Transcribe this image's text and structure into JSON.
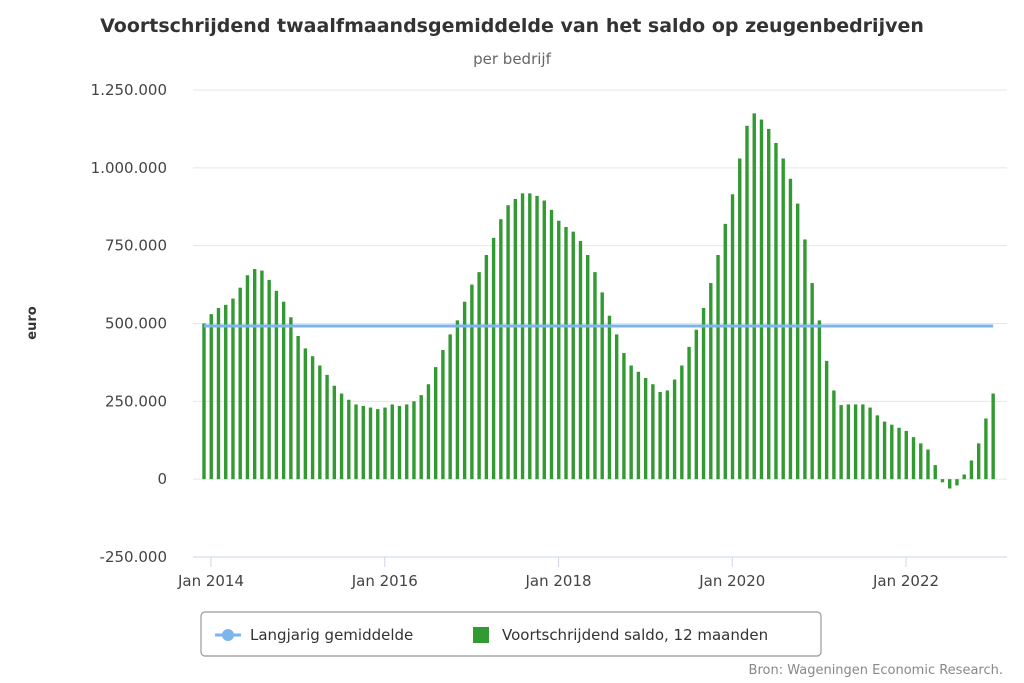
{
  "chart_data": {
    "type": "bar",
    "title": "Voortschrijdend twaalfmaandsgemiddelde van het saldo op zeugenbedrijven",
    "subtitle": "per bedrijf",
    "ylabel": "euro",
    "xlabel": "",
    "ylim": [
      -250000,
      1250000
    ],
    "yticks": [
      -250000,
      0,
      250000,
      500000,
      750000,
      1000000,
      1250000
    ],
    "ytick_labels": [
      "-250.000",
      "0",
      "250.000",
      "500.000",
      "750.000",
      "1.000.000",
      "1.250.000"
    ],
    "xticks": [
      {
        "label": "Jan 2014",
        "month_index": 0
      },
      {
        "label": "Jan 2016",
        "month_index": 24
      },
      {
        "label": "Jan 2018",
        "month_index": 48
      },
      {
        "label": "Jan 2020",
        "month_index": 72
      },
      {
        "label": "Jan 2022",
        "month_index": 96
      }
    ],
    "start": "Jan 2014",
    "series": [
      {
        "name": "Langjarig gemiddelde",
        "type": "line",
        "color": "#7cb5ec",
        "value": 492000
      },
      {
        "name": "Voortschrijdend saldo, 12 maanden",
        "type": "bar",
        "color": "#339933",
        "values": [
          500000,
          530000,
          550000,
          560000,
          580000,
          615000,
          655000,
          675000,
          670000,
          640000,
          605000,
          570000,
          520000,
          460000,
          420000,
          395000,
          365000,
          335000,
          300000,
          275000,
          255000,
          240000,
          235000,
          230000,
          225000,
          230000,
          240000,
          235000,
          240000,
          250000,
          270000,
          305000,
          360000,
          415000,
          465000,
          510000,
          570000,
          625000,
          665000,
          720000,
          775000,
          835000,
          880000,
          900000,
          918000,
          918000,
          910000,
          895000,
          865000,
          830000,
          810000,
          795000,
          765000,
          720000,
          665000,
          600000,
          525000,
          465000,
          405000,
          365000,
          345000,
          325000,
          305000,
          280000,
          285000,
          320000,
          365000,
          425000,
          480000,
          550000,
          630000,
          720000,
          820000,
          915000,
          1030000,
          1135000,
          1175000,
          1155000,
          1125000,
          1080000,
          1030000,
          965000,
          885000,
          770000,
          630000,
          510000,
          380000,
          285000,
          238000,
          240000,
          240000,
          240000,
          230000,
          205000,
          185000,
          175000,
          165000,
          155000,
          135000,
          115000,
          95000,
          45000,
          -10000,
          -30000,
          -20000,
          15000,
          60000,
          115000,
          195000,
          275000
        ]
      }
    ],
    "legend": {
      "position": "bottom-center"
    },
    "grid": true
  },
  "credits": "Bron: Wageningen Economic Research."
}
